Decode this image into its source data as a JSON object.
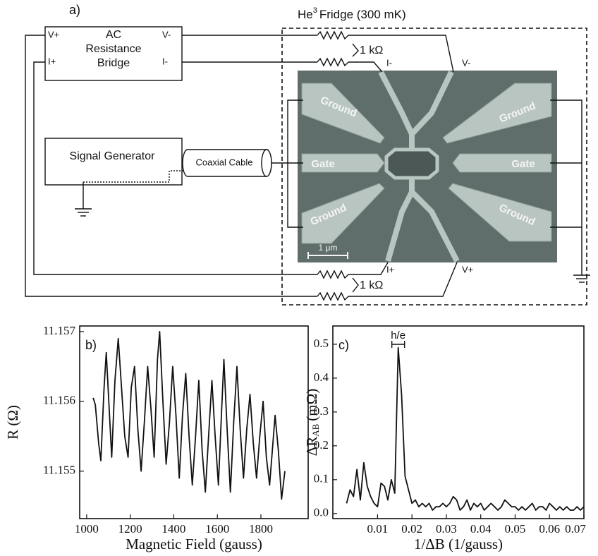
{
  "diagram": {
    "panel_label": "a)",
    "fridge_title": {
      "element": "He",
      "superscript": "3",
      "text": "Fridge (300 mK)"
    },
    "bridge": {
      "title": [
        "AC",
        "Resistance",
        "Bridge"
      ],
      "v_plus": "V+",
      "i_plus": "I+",
      "v_minus": "V-",
      "i_minus": "I-"
    },
    "resistor_label_top": "1 kΩ",
    "resistor_label_bottom": "1 kΩ",
    "probes": {
      "i_minus": "I-",
      "v_minus": "V-",
      "i_plus": "I+",
      "v_plus": "V+"
    },
    "signal_generator": "Signal Generator",
    "coaxial_cable": "Coaxial Cable",
    "pads": {
      "ground_top_left": "Ground",
      "gate_left": "Gate",
      "ground_bottom_left": "Ground",
      "ground_top_right": "Ground",
      "gate_right": "Gate",
      "ground_bottom_right": "Ground"
    },
    "scale_bar": "1 μm"
  },
  "chart_data": [
    {
      "type": "line",
      "panel_label": "b)",
      "xlabel": "Magnetic Field (gauss)",
      "ylabel": "R (Ω)",
      "color": "#111111",
      "xlim": [
        968,
        2017
      ],
      "xticks": [
        1000,
        1200,
        1400,
        1600,
        1800
      ],
      "ylim": [
        11.15432,
        11.15708
      ],
      "yticks": [
        11.155,
        11.156,
        11.157
      ],
      "x": [
        1030,
        1040,
        1055,
        1065,
        1080,
        1090,
        1105,
        1115,
        1130,
        1145,
        1160,
        1175,
        1190,
        1205,
        1220,
        1235,
        1250,
        1265,
        1280,
        1295,
        1310,
        1325,
        1335,
        1350,
        1365,
        1380,
        1395,
        1410,
        1425,
        1440,
        1455,
        1470,
        1485,
        1500,
        1515,
        1530,
        1545,
        1560,
        1575,
        1590,
        1605,
        1620,
        1630,
        1645,
        1660,
        1675,
        1690,
        1705,
        1720,
        1735,
        1750,
        1765,
        1780,
        1795,
        1810,
        1825,
        1840,
        1855,
        1865,
        1880,
        1895,
        1910
      ],
      "values": [
        11.15605,
        11.15595,
        11.1554,
        11.15515,
        11.1562,
        11.1567,
        11.1558,
        11.1552,
        11.1563,
        11.1569,
        11.1562,
        11.1555,
        11.1552,
        11.1562,
        11.1565,
        11.1556,
        11.155,
        11.1557,
        11.1565,
        11.1559,
        11.1552,
        11.1566,
        11.157,
        11.156,
        11.1551,
        11.1557,
        11.1565,
        11.1558,
        11.1549,
        11.1558,
        11.1564,
        11.1555,
        11.1548,
        11.1555,
        11.1563,
        11.1553,
        11.1547,
        11.1555,
        11.1563,
        11.1555,
        11.1548,
        11.1559,
        11.1566,
        11.1556,
        11.1547,
        11.1557,
        11.1565,
        11.1556,
        11.1549,
        11.1556,
        11.1561,
        11.1554,
        11.1549,
        11.1555,
        11.156,
        11.1552,
        11.1548,
        11.1554,
        11.1558,
        11.1553,
        11.1546,
        11.155
      ]
    },
    {
      "type": "line",
      "panel_label": "c)",
      "xlabel": "1/ΔB (1/gauss)",
      "ylabel": "ΔR",
      "ylabel_subscript": "AB",
      "ylabel_unit": "(mΩ)",
      "annotation": "h/e",
      "color": "#111111",
      "xlim": [
        -0.003,
        0.07
      ],
      "xticks": [
        0.01,
        0.02,
        0.03,
        0.04,
        0.05,
        0.06,
        0.07
      ],
      "ylim": [
        -0.015,
        0.554
      ],
      "yticks": [
        {
          "value": 0,
          "label": "0.0"
        },
        0.1,
        0.2,
        0.3,
        0.4,
        0.5
      ],
      "x": [
        0.001,
        0.002,
        0.003,
        0.004,
        0.005,
        0.006,
        0.007,
        0.008,
        0.009,
        0.01,
        0.011,
        0.012,
        0.013,
        0.014,
        0.015,
        0.016,
        0.017,
        0.018,
        0.019,
        0.02,
        0.021,
        0.022,
        0.023,
        0.024,
        0.025,
        0.026,
        0.027,
        0.028,
        0.029,
        0.03,
        0.031,
        0.032,
        0.033,
        0.034,
        0.035,
        0.036,
        0.037,
        0.038,
        0.039,
        0.04,
        0.041,
        0.042,
        0.043,
        0.044,
        0.045,
        0.046,
        0.047,
        0.048,
        0.049,
        0.05,
        0.051,
        0.052,
        0.053,
        0.054,
        0.055,
        0.056,
        0.057,
        0.058,
        0.059,
        0.06,
        0.061,
        0.062,
        0.063,
        0.064,
        0.065,
        0.066,
        0.067,
        0.068,
        0.069,
        0.07
      ],
      "values": [
        0.03,
        0.07,
        0.05,
        0.13,
        0.04,
        0.15,
        0.08,
        0.05,
        0.03,
        0.02,
        0.09,
        0.08,
        0.04,
        0.1,
        0.06,
        0.49,
        0.35,
        0.11,
        0.07,
        0.03,
        0.04,
        0.02,
        0.03,
        0.02,
        0.03,
        0.01,
        0.02,
        0.02,
        0.03,
        0.02,
        0.03,
        0.05,
        0.04,
        0.01,
        0.02,
        0.04,
        0.01,
        0.03,
        0.02,
        0.03,
        0.01,
        0.02,
        0.03,
        0.02,
        0.01,
        0.02,
        0.04,
        0.03,
        0.02,
        0.02,
        0.01,
        0.02,
        0.01,
        0.02,
        0.03,
        0.01,
        0.02,
        0.02,
        0.01,
        0.03,
        0.02,
        0.01,
        0.02,
        0.01,
        0.02,
        0.01,
        0.01,
        0.02,
        0.01,
        0.02
      ]
    }
  ]
}
